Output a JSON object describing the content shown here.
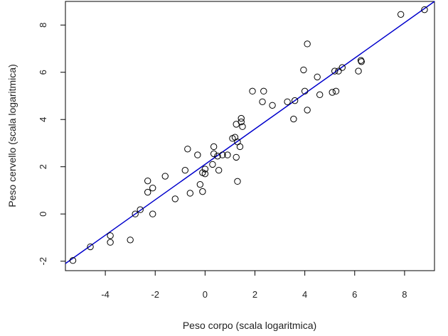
{
  "chart_data": {
    "type": "scatter",
    "xlabel": "Peso corpo (scala logaritmica)",
    "ylabel": "Peso cervello (scala logaritmica)",
    "xlim": [
      -5.6,
      9.2
    ],
    "ylim": [
      -2.4,
      9.0
    ],
    "x_ticks": [
      -4,
      -2,
      0,
      2,
      4,
      6,
      8
    ],
    "y_ticks": [
      -2,
      0,
      2,
      4,
      6,
      8
    ],
    "x_tick_labels": [
      "-4",
      "-2",
      "0",
      "2",
      "4",
      "6",
      "8"
    ],
    "y_tick_labels": [
      "-2",
      "0",
      "2",
      "4",
      "6",
      "8"
    ],
    "grid": false,
    "point_color": "#000000",
    "line_color": "#0000cc",
    "regression_line": {
      "intercept": 2.1,
      "slope": 0.75
    },
    "points": [
      {
        "x": -5.3,
        "y": -1.97
      },
      {
        "x": -4.6,
        "y": -1.39
      },
      {
        "x": -3.8,
        "y": -0.92
      },
      {
        "x": -3.8,
        "y": -1.2
      },
      {
        "x": -3.0,
        "y": -1.1
      },
      {
        "x": -2.8,
        "y": 0.0
      },
      {
        "x": -2.6,
        "y": 0.18
      },
      {
        "x": -2.3,
        "y": 1.4
      },
      {
        "x": -2.3,
        "y": 0.92
      },
      {
        "x": -2.1,
        "y": 1.1
      },
      {
        "x": -2.1,
        "y": 0.0
      },
      {
        "x": -1.6,
        "y": 1.6
      },
      {
        "x": -1.2,
        "y": 0.64
      },
      {
        "x": -0.8,
        "y": 1.85
      },
      {
        "x": -0.7,
        "y": 2.75
      },
      {
        "x": -0.6,
        "y": 0.88
      },
      {
        "x": -0.3,
        "y": 2.5
      },
      {
        "x": -0.2,
        "y": 1.25
      },
      {
        "x": -0.1,
        "y": 0.95
      },
      {
        "x": -0.1,
        "y": 1.75
      },
      {
        "x": 0.0,
        "y": 1.7
      },
      {
        "x": 0.0,
        "y": 1.9
      },
      {
        "x": 0.3,
        "y": 2.1
      },
      {
        "x": 0.35,
        "y": 2.85
      },
      {
        "x": 0.35,
        "y": 2.55
      },
      {
        "x": 0.5,
        "y": 2.45
      },
      {
        "x": 0.55,
        "y": 1.85
      },
      {
        "x": 0.7,
        "y": 2.5
      },
      {
        "x": 0.9,
        "y": 2.5
      },
      {
        "x": 1.1,
        "y": 3.2
      },
      {
        "x": 1.2,
        "y": 3.25
      },
      {
        "x": 1.25,
        "y": 2.4
      },
      {
        "x": 1.25,
        "y": 3.8
      },
      {
        "x": 1.3,
        "y": 3.05
      },
      {
        "x": 1.3,
        "y": 1.38
      },
      {
        "x": 1.4,
        "y": 2.85
      },
      {
        "x": 1.45,
        "y": 4.05
      },
      {
        "x": 1.45,
        "y": 3.9
      },
      {
        "x": 1.5,
        "y": 3.7
      },
      {
        "x": 1.9,
        "y": 5.2
      },
      {
        "x": 2.3,
        "y": 4.75
      },
      {
        "x": 2.35,
        "y": 5.2
      },
      {
        "x": 2.7,
        "y": 4.6
      },
      {
        "x": 3.3,
        "y": 4.75
      },
      {
        "x": 3.55,
        "y": 4.02
      },
      {
        "x": 3.6,
        "y": 4.8
      },
      {
        "x": 3.95,
        "y": 6.1
      },
      {
        "x": 4.0,
        "y": 5.2
      },
      {
        "x": 4.1,
        "y": 4.4
      },
      {
        "x": 4.1,
        "y": 7.2
      },
      {
        "x": 4.5,
        "y": 5.8
      },
      {
        "x": 4.6,
        "y": 5.05
      },
      {
        "x": 5.1,
        "y": 5.15
      },
      {
        "x": 5.2,
        "y": 6.05
      },
      {
        "x": 5.25,
        "y": 5.2
      },
      {
        "x": 5.35,
        "y": 6.05
      },
      {
        "x": 5.5,
        "y": 6.2
      },
      {
        "x": 6.15,
        "y": 6.05
      },
      {
        "x": 6.25,
        "y": 6.5
      },
      {
        "x": 6.27,
        "y": 6.45
      },
      {
        "x": 7.85,
        "y": 8.45
      },
      {
        "x": 8.8,
        "y": 8.65
      }
    ]
  }
}
